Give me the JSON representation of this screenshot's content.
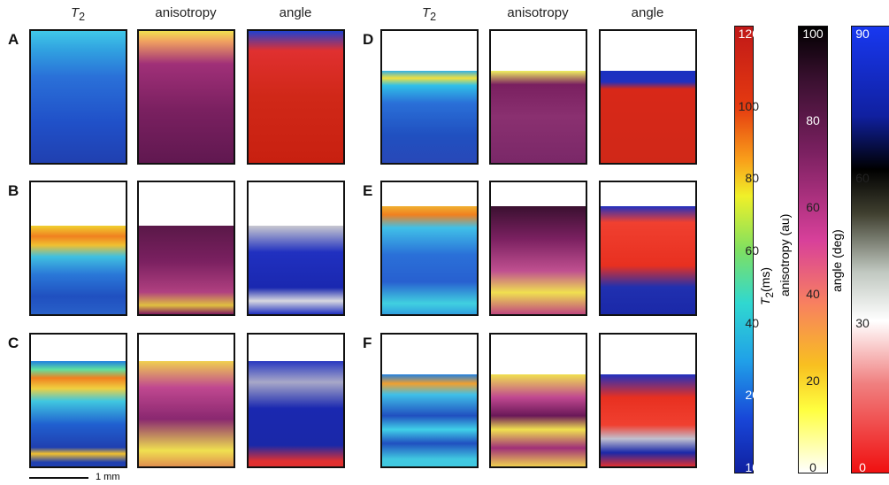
{
  "panel_labels": [
    "A",
    "B",
    "C",
    "D",
    "E",
    "F"
  ],
  "column_headers": {
    "t2": {
      "main": "T",
      "sub": "2"
    },
    "anisotropy": "anisotropy",
    "angle": "angle"
  },
  "colorbars": {
    "t2": {
      "title": {
        "main": "T",
        "sub": "2",
        "unit": "(ms)"
      },
      "ticks": [
        "120",
        "100",
        "80",
        "60",
        "40",
        "20",
        "10"
      ]
    },
    "anisotropy": {
      "title": "anisotropy (au)",
      "ticks": [
        "100",
        "80",
        "60",
        "40",
        "20",
        "0"
      ]
    },
    "angle": {
      "title": "angle (deg)",
      "ticks": [
        "90",
        "60",
        "30",
        "0"
      ]
    }
  },
  "scale_bar": "1 mm"
}
